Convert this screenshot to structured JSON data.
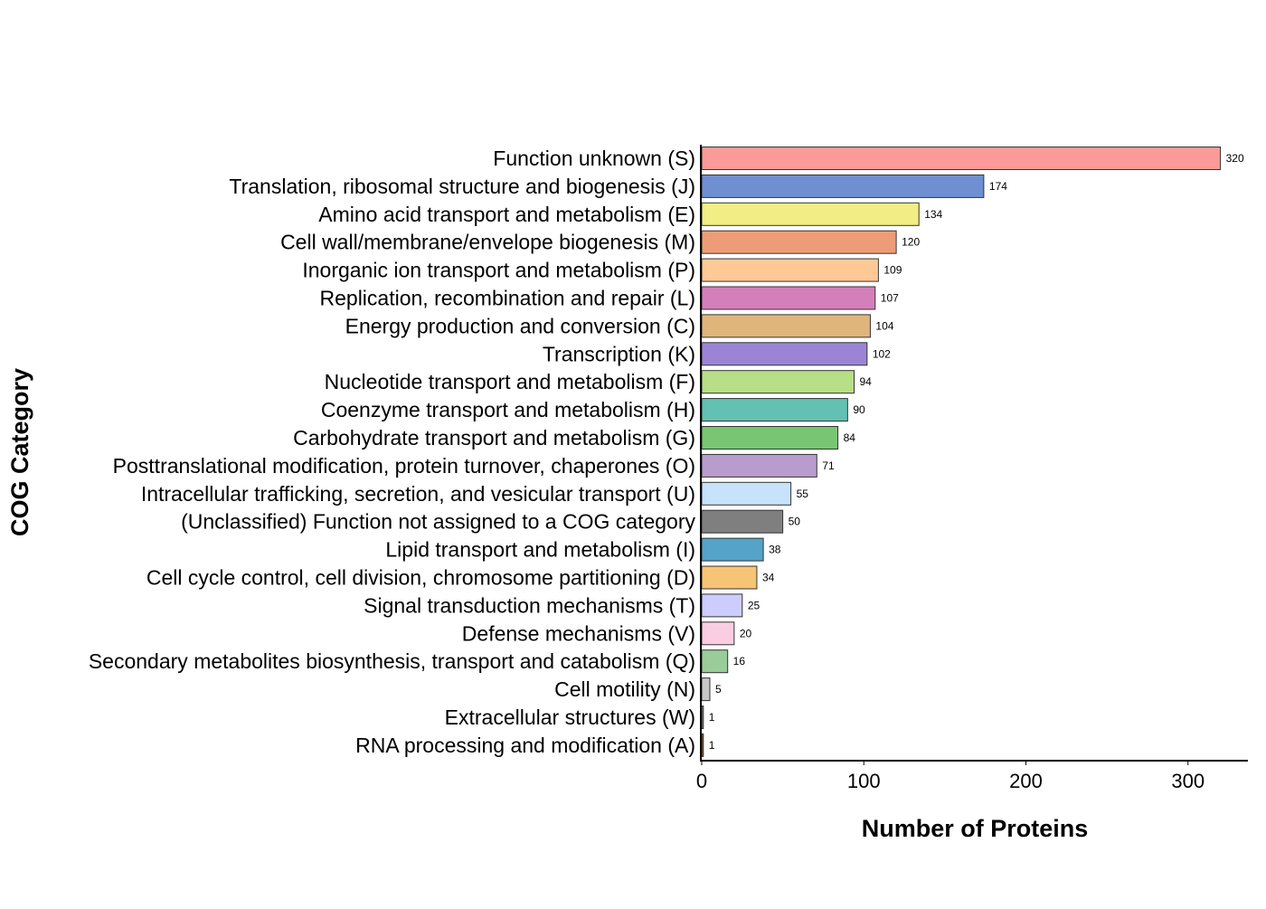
{
  "chart_data": {
    "type": "bar",
    "orientation": "horizontal",
    "title": "",
    "xlabel": "Number of Proteins",
    "ylabel": "COG Category",
    "xlim": [
      0,
      340
    ],
    "xticks": [
      0,
      100,
      200,
      300
    ],
    "xtick_labels": [
      "0",
      "100",
      "200",
      "300"
    ],
    "grid": false,
    "legend": "none",
    "data_labels": true,
    "categories": [
      "Function unknown (S)",
      "Translation, ribosomal structure and biogenesis (J)",
      "Amino acid transport and metabolism (E)",
      "Cell wall/membrane/envelope biogenesis (M)",
      "Inorganic ion transport and metabolism (P)",
      "Replication, recombination and repair (L)",
      "Energy production and conversion (C)",
      "Transcription (K)",
      "Nucleotide transport and metabolism (F)",
      "Coenzyme transport and metabolism (H)",
      "Carbohydrate transport and metabolism (G)",
      "Posttranslational modification, protein turnover, chaperones (O)",
      "Intracellular trafficking, secretion, and vesicular transport (U)",
      "(Unclassified) Function not assigned to a COG category",
      "Lipid transport and metabolism (I)",
      "Cell cycle control, cell division, chromosome partitioning (D)",
      "Signal transduction mechanisms (T)",
      "Defense mechanisms (V)",
      "Secondary metabolites biosynthesis, transport and catabolism (Q)",
      "Cell motility (N)",
      "Extracellular structures (W)",
      "RNA processing and modification (A)"
    ],
    "values": [
      320,
      174,
      134,
      120,
      109,
      107,
      104,
      102,
      94,
      90,
      84,
      71,
      55,
      50,
      38,
      34,
      25,
      20,
      16,
      5,
      1,
      1
    ],
    "value_labels": [
      "320",
      "174",
      "134",
      "120",
      "109",
      "107",
      "104",
      "102",
      "94",
      "90",
      "84",
      "71",
      "55",
      "50",
      "38",
      "34",
      "25",
      "20",
      "16",
      "5",
      "1",
      "1"
    ],
    "colors": [
      "#fb9a99",
      "#6f8fd2",
      "#f0ee84",
      "#ee9c78",
      "#fec995",
      "#d57fba",
      "#e0b57c",
      "#9b84d6",
      "#b7df86",
      "#62c1b3",
      "#78c674",
      "#b89ccd",
      "#c8e2fb",
      "#7f7f7f",
      "#55a3c8",
      "#f7c476",
      "#ccccfd",
      "#fbcde3",
      "#99cc99",
      "#c8c8c8",
      "#808080",
      "#8b5a2b"
    ]
  }
}
